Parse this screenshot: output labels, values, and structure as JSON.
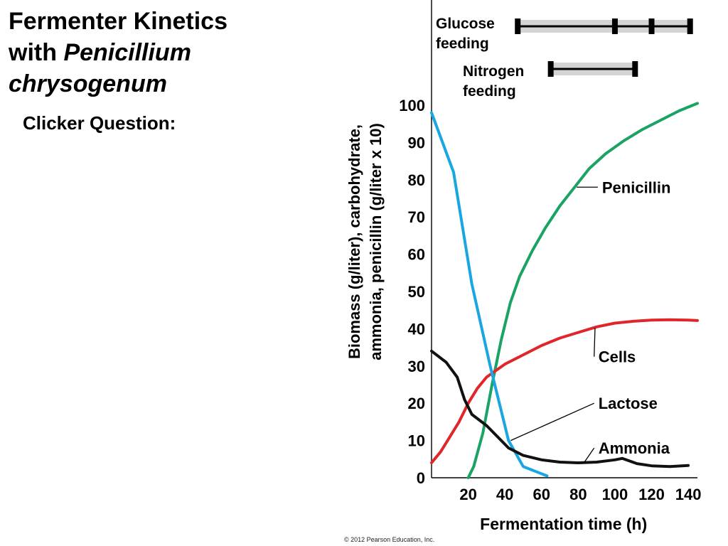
{
  "title": {
    "line1": "Fermenter Kinetics",
    "line2_plain": "with ",
    "line2_italic": "Penicillium",
    "line3_italic": "chrysogenum"
  },
  "question": "Clicker Question:",
  "copyright": "© 2012 Pearson Education, Inc.",
  "colors": {
    "penicillin": "#1aa364",
    "cells": "#e0262b",
    "lactose": "#1aa6e0",
    "ammonia": "#111111",
    "feed_bar": "#d4d4d4"
  },
  "chart_data": {
    "type": "line",
    "xlabel": "Fermentation time (h)",
    "ylabel_line1": "Biomass (g/liter), carbohydrate,",
    "ylabel_line2": "ammonia, penicillin (g/liter x 10)",
    "xlim": [
      0,
      145
    ],
    "ylim": [
      0,
      100
    ],
    "x_ticks": [
      20,
      40,
      60,
      80,
      100,
      120,
      140
    ],
    "y_ticks": [
      0,
      10,
      20,
      30,
      40,
      50,
      60,
      70,
      80,
      90,
      100
    ],
    "grid": false,
    "series": [
      {
        "name": "Penicillin",
        "color_key": "penicillin",
        "x": [
          20,
          23,
          28,
          33,
          38,
          43,
          48,
          55,
          62,
          70,
          78,
          86,
          95,
          105,
          115,
          125,
          135,
          145
        ],
        "y": [
          0,
          3,
          12,
          25,
          37,
          47,
          54,
          61,
          67,
          73,
          78,
          83,
          87,
          90.5,
          93.5,
          96,
          98.5,
          100.5
        ]
      },
      {
        "name": "Cells",
        "color_key": "cells",
        "x": [
          0,
          5,
          10,
          15,
          20,
          25,
          30,
          40,
          50,
          60,
          70,
          80,
          90,
          100,
          110,
          120,
          130,
          140,
          145
        ],
        "y": [
          4,
          7,
          11,
          15,
          20,
          24,
          27,
          30.5,
          33,
          35.5,
          37.5,
          39,
          40.5,
          41.5,
          42,
          42.3,
          42.4,
          42.3,
          42.2
        ]
      },
      {
        "name": "Lactose",
        "color_key": "lactose",
        "x": [
          0,
          12,
          22,
          32,
          42,
          50,
          63
        ],
        "y": [
          98,
          82,
          52,
          30,
          10,
          3,
          0.5
        ]
      },
      {
        "name": "Ammonia",
        "color_key": "ammonia",
        "x": [
          0,
          8,
          14,
          18,
          22,
          30,
          36,
          42,
          50,
          60,
          70,
          80,
          90,
          100,
          104,
          112,
          120,
          130,
          140
        ],
        "y": [
          34,
          31,
          27,
          21,
          17,
          14,
          11,
          8,
          6,
          4.8,
          4.2,
          4,
          4.2,
          4.8,
          5.2,
          3.8,
          3.2,
          3,
          3.3
        ]
      }
    ],
    "annotations": [
      {
        "label": "Penicillin",
        "series": "Penicillin",
        "at_x": 78,
        "text_x": 93,
        "text_y": 78
      },
      {
        "label": "Cells",
        "series": "Cells",
        "at_x": 88,
        "text_x": 91,
        "text_y": 32.5
      },
      {
        "label": "Lactose",
        "series": "Lactose",
        "at_x": 42,
        "text_x": 91,
        "text_y": 20
      },
      {
        "label": "Ammonia",
        "series": "Ammonia",
        "at_x": 82,
        "text_x": 91,
        "text_y": 8
      }
    ],
    "feeding": [
      {
        "label_line1": "Glucose",
        "label_line2": "feeding",
        "start": 47,
        "end": 141,
        "marks": [
          47,
          100,
          120,
          141
        ]
      },
      {
        "label_line1": "Nitrogen",
        "label_line2": "feeding",
        "start": 65,
        "end": 111,
        "marks": [
          65,
          111
        ]
      }
    ]
  }
}
